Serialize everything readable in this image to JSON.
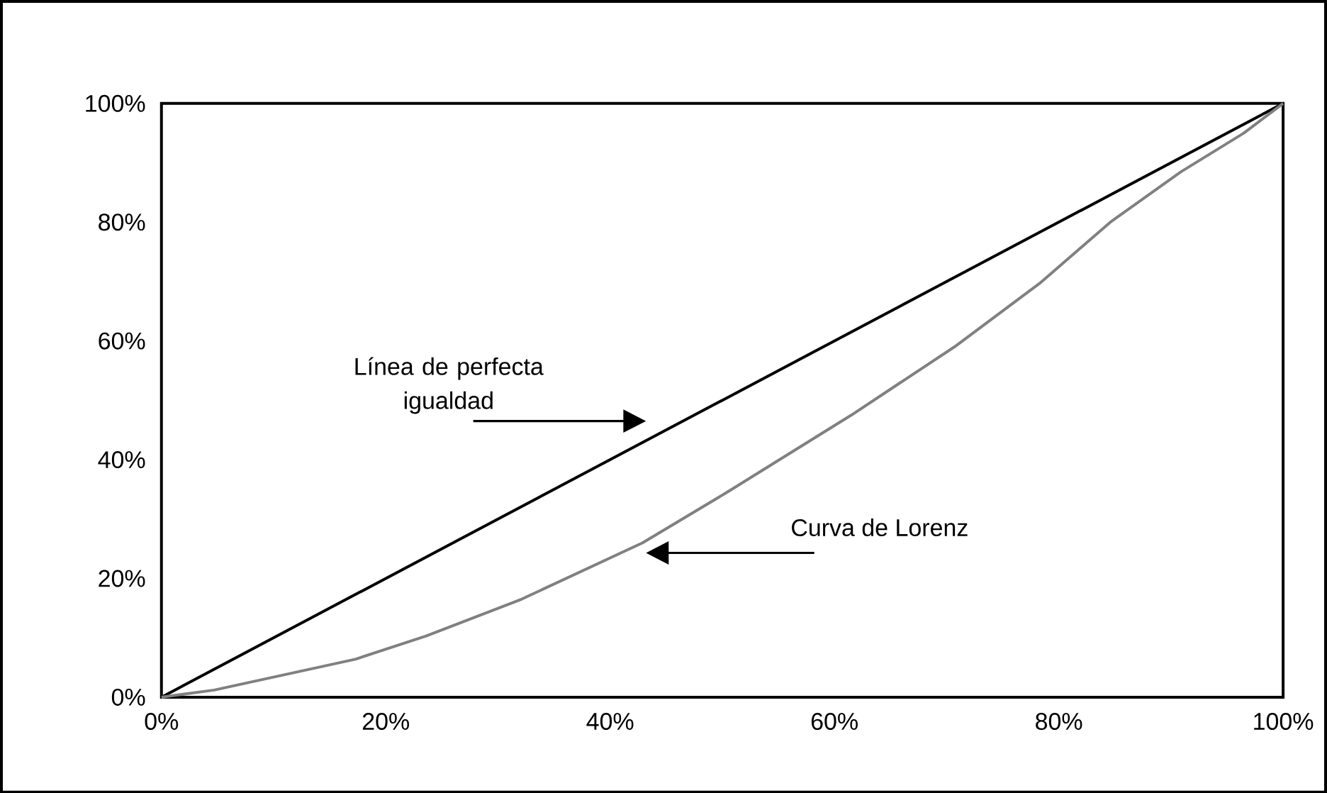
{
  "chart_data": {
    "type": "line",
    "xlim": [
      0,
      100
    ],
    "ylim": [
      0,
      100
    ],
    "xticks": [
      {
        "value": 0,
        "label": "0%"
      },
      {
        "value": 20,
        "label": "20%"
      },
      {
        "value": 40,
        "label": "40%"
      },
      {
        "value": 60,
        "label": "60%"
      },
      {
        "value": 80,
        "label": "80%"
      },
      {
        "value": 100,
        "label": "100%"
      }
    ],
    "yticks": [
      {
        "value": 0,
        "label": "0%"
      },
      {
        "value": 20,
        "label": "20%"
      },
      {
        "value": 40,
        "label": "40%"
      },
      {
        "value": 60,
        "label": "60%"
      },
      {
        "value": 80,
        "label": "80%"
      },
      {
        "value": 100,
        "label": "100%"
      }
    ],
    "series": [
      {
        "color": "#000000",
        "x": [
          0,
          100
        ],
        "values": [
          0,
          100
        ]
      },
      {
        "color": "#808080",
        "x": [
          0,
          4.7,
          17.3,
          23.6,
          32.1,
          42.9,
          50.5,
          61.5,
          70.7,
          78.3,
          84.6,
          90.9,
          96.5,
          100
        ],
        "values": [
          0,
          1.2,
          6.4,
          10.3,
          16.5,
          26.0,
          34.6,
          47.5,
          59.0,
          69.7,
          80.0,
          88.5,
          95.0,
          100
        ]
      }
    ],
    "annotations": [
      "Línea de perfecta igualdad",
      "Curva de Lorenz"
    ],
    "grid": false,
    "marker": "none",
    "line_style": "solid"
  }
}
